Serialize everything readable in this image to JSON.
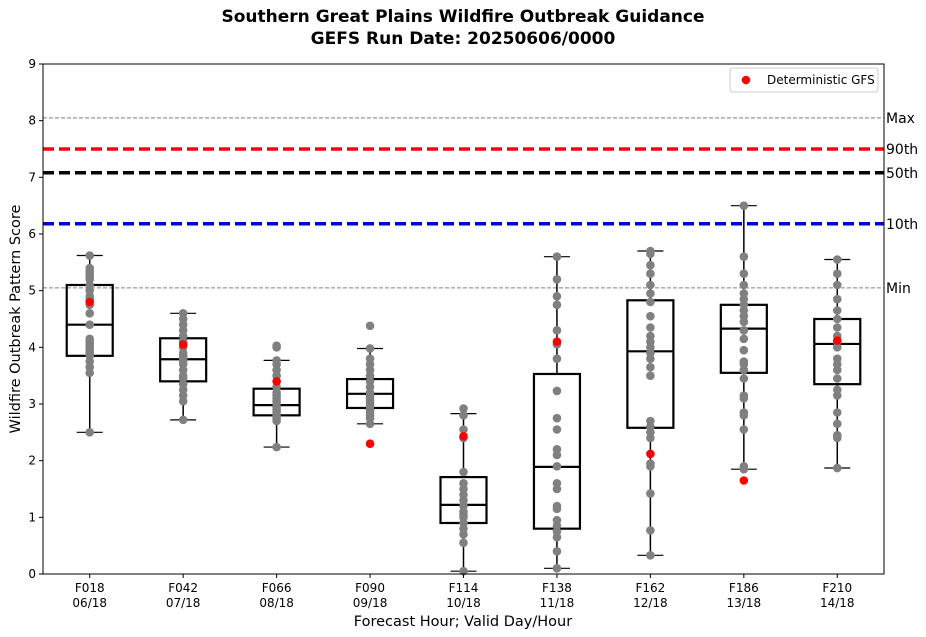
{
  "chart_data": {
    "type": "box",
    "title": "Southern Great Plains Wildfire Outbreak Guidance",
    "subtitle": "GEFS Run Date: 20250606/0000",
    "xlabel": "Forecast Hour; Valid Day/Hour",
    "ylabel": "Wildfire Outbreak Pattern Score",
    "ylim": [
      0,
      9
    ],
    "yticks": [
      0,
      1,
      2,
      3,
      4,
      5,
      6,
      7,
      8,
      9
    ],
    "categories": [
      {
        "hour": "F018",
        "valid": "06/18"
      },
      {
        "hour": "F042",
        "valid": "07/18"
      },
      {
        "hour": "F066",
        "valid": "08/18"
      },
      {
        "hour": "F090",
        "valid": "09/18"
      },
      {
        "hour": "F114",
        "valid": "10/18"
      },
      {
        "hour": "F138",
        "valid": "11/18"
      },
      {
        "hour": "F162",
        "valid": "12/18"
      },
      {
        "hour": "F186",
        "valid": "13/18"
      },
      {
        "hour": "F210",
        "valid": "14/18"
      }
    ],
    "boxes": [
      {
        "whisker_low": 2.5,
        "q1": 3.85,
        "median": 4.4,
        "q3": 5.1,
        "whisker_high": 5.62
      },
      {
        "whisker_low": 2.72,
        "q1": 3.4,
        "median": 3.79,
        "q3": 4.16,
        "whisker_high": 4.6
      },
      {
        "whisker_low": 2.24,
        "q1": 2.8,
        "median": 2.98,
        "q3": 3.27,
        "whisker_high": 3.77
      },
      {
        "whisker_low": 2.65,
        "q1": 2.93,
        "median": 3.18,
        "q3": 3.44,
        "whisker_high": 3.98
      },
      {
        "whisker_low": 0.05,
        "q1": 0.9,
        "median": 1.22,
        "q3": 1.71,
        "whisker_high": 2.83
      },
      {
        "whisker_low": 0.1,
        "q1": 0.8,
        "median": 1.89,
        "q3": 3.53,
        "whisker_high": 5.6
      },
      {
        "whisker_low": 0.33,
        "q1": 2.58,
        "median": 3.93,
        "q3": 4.83,
        "whisker_high": 5.7
      },
      {
        "whisker_low": 1.85,
        "q1": 3.55,
        "median": 4.33,
        "q3": 4.75,
        "whisker_high": 6.5
      },
      {
        "whisker_low": 1.87,
        "q1": 3.35,
        "median": 4.06,
        "q3": 4.5,
        "whisker_high": 5.55
      }
    ],
    "members": [
      [
        2.5,
        3.55,
        3.65,
        3.75,
        3.85,
        3.9,
        3.95,
        4.0,
        4.05,
        4.1,
        4.15,
        4.4,
        4.6,
        4.75,
        4.85,
        4.9,
        5.0,
        5.1,
        5.2,
        5.25,
        5.3,
        5.35,
        5.4,
        5.62
      ],
      [
        2.72,
        3.05,
        3.15,
        3.25,
        3.35,
        3.45,
        3.5,
        3.6,
        3.7,
        3.75,
        3.8,
        3.85,
        3.9,
        4.0,
        4.1,
        4.2,
        4.3,
        4.4,
        4.5,
        4.6
      ],
      [
        2.24,
        2.7,
        2.75,
        2.8,
        2.85,
        2.9,
        2.95,
        3.0,
        3.05,
        3.1,
        3.15,
        3.2,
        3.3,
        3.5,
        3.6,
        3.7,
        3.77,
        4.0,
        4.03
      ],
      [
        2.65,
        2.75,
        2.8,
        2.85,
        2.9,
        2.95,
        3.0,
        3.05,
        3.1,
        3.15,
        3.2,
        3.3,
        3.4,
        3.5,
        3.6,
        3.7,
        3.8,
        3.98,
        4.38
      ],
      [
        0.05,
        0.55,
        0.7,
        0.8,
        0.9,
        1.0,
        1.05,
        1.1,
        1.2,
        1.3,
        1.4,
        1.5,
        1.6,
        1.8,
        2.4,
        2.55,
        2.8,
        2.92
      ],
      [
        0.1,
        0.4,
        0.65,
        0.75,
        0.85,
        0.95,
        1.15,
        1.2,
        1.5,
        1.6,
        1.9,
        2.1,
        2.2,
        2.55,
        2.75,
        3.23,
        3.8,
        4.05,
        4.3,
        4.75,
        4.9,
        5.2,
        5.6
      ],
      [
        0.33,
        0.77,
        1.42,
        1.9,
        1.95,
        2.4,
        2.5,
        2.6,
        2.7,
        3.5,
        3.65,
        3.8,
        3.9,
        4.0,
        4.1,
        4.2,
        4.35,
        4.55,
        4.8,
        4.95,
        5.1,
        5.3,
        5.45,
        5.65,
        5.7
      ],
      [
        1.85,
        1.9,
        2.55,
        2.8,
        2.85,
        3.1,
        3.15,
        3.45,
        3.6,
        3.7,
        3.75,
        3.95,
        4.15,
        4.3,
        4.45,
        4.55,
        4.65,
        4.75,
        4.85,
        4.95,
        5.1,
        5.3,
        5.6,
        6.5
      ],
      [
        1.87,
        2.4,
        2.45,
        2.65,
        2.85,
        3.15,
        3.25,
        3.45,
        3.6,
        3.7,
        3.8,
        4.0,
        4.1,
        4.2,
        4.35,
        4.5,
        4.65,
        4.85,
        5.1,
        5.3,
        5.55
      ]
    ],
    "deterministic": {
      "name": "Deterministic GFS",
      "values": [
        4.8,
        4.05,
        3.4,
        2.3,
        2.43,
        4.1,
        2.12,
        1.65,
        4.12
      ]
    },
    "reference_lines": [
      {
        "label": "Max",
        "value": 8.05,
        "color": "#808080",
        "style": "thin-dashed"
      },
      {
        "label": "90th",
        "value": 7.5,
        "color": "#ff0000",
        "style": "thick-dashed"
      },
      {
        "label": "50th",
        "value": 7.08,
        "color": "#000000",
        "style": "thick-dashed"
      },
      {
        "label": "10th",
        "value": 6.18,
        "color": "#0000cc",
        "style": "thick-dashed"
      },
      {
        "label": "Min",
        "value": 5.05,
        "color": "#808080",
        "style": "thin-dashed"
      }
    ],
    "colors": {
      "members": "#808080",
      "deterministic": "#ff0000",
      "box": "#000000"
    },
    "legend_position": "top-right",
    "grid": false
  }
}
